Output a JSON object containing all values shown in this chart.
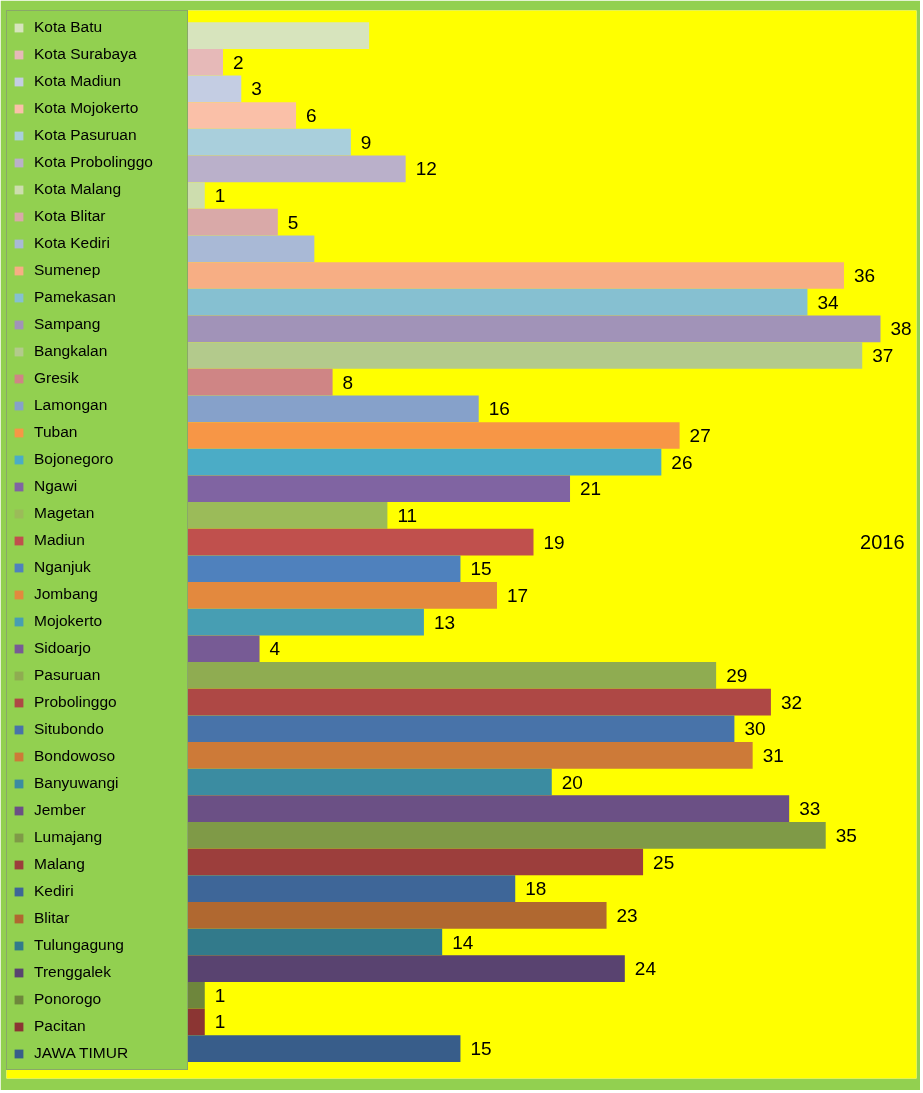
{
  "chart_data": {
    "type": "bar",
    "orientation": "horizontal",
    "annotations": [
      "2016"
    ],
    "legend": "left",
    "tick_labels": false,
    "categories": [
      null
    ],
    "series": [
      {
        "name": "Kota Batu",
        "color": "#d7e4bd",
        "values": [
          10
        ],
        "value_labels": [
          null
        ]
      },
      {
        "name": "Kota Surabaya",
        "color": "#e6b9b8",
        "values": [
          2
        ],
        "value_labels": [
          "2"
        ]
      },
      {
        "name": "Kota Madiun",
        "color": "#c4cde3",
        "values": [
          3
        ],
        "value_labels": [
          "3"
        ]
      },
      {
        "name": "Kota Mojokerto",
        "color": "#fac0a8",
        "values": [
          6
        ],
        "value_labels": [
          "6"
        ]
      },
      {
        "name": "Kota Pasuruan",
        "color": "#a9cfdc",
        "values": [
          9
        ],
        "value_labels": [
          "9"
        ]
      },
      {
        "name": "Kota Probolinggo",
        "color": "#bab0ca",
        "values": [
          12
        ],
        "value_labels": [
          "12"
        ]
      },
      {
        "name": "Kota Malang",
        "color": "#cdddae",
        "values": [
          1
        ],
        "value_labels": [
          "1"
        ]
      },
      {
        "name": "Kota Blitar",
        "color": "#d9a9a8",
        "values": [
          5
        ],
        "value_labels": [
          "5"
        ]
      },
      {
        "name": "Kota Kediri",
        "color": "#a9b9d6",
        "values": [
          7
        ],
        "value_labels": [
          null
        ]
      },
      {
        "name": "Sumenep",
        "color": "#f7ae84",
        "values": [
          36
        ],
        "value_labels": [
          "36"
        ]
      },
      {
        "name": "Pamekasan",
        "color": "#86c0d1",
        "values": [
          34
        ],
        "value_labels": [
          "34"
        ]
      },
      {
        "name": "Sampang",
        "color": "#a193b8",
        "values": [
          38
        ],
        "value_labels": [
          "38"
        ]
      },
      {
        "name": "Bangkalan",
        "color": "#b3ca8c",
        "values": [
          37
        ],
        "value_labels": [
          "37"
        ]
      },
      {
        "name": "Gresik",
        "color": "#cf8585",
        "values": [
          8
        ],
        "value_labels": [
          "8"
        ]
      },
      {
        "name": "Lamongan",
        "color": "#86a1ca",
        "values": [
          16
        ],
        "value_labels": [
          "16"
        ]
      },
      {
        "name": "Tuban",
        "color": "#f79646",
        "values": [
          27
        ],
        "value_labels": [
          "27"
        ]
      },
      {
        "name": "Bojonegoro",
        "color": "#4bacc6",
        "values": [
          26
        ],
        "value_labels": [
          "26"
        ]
      },
      {
        "name": "Ngawi",
        "color": "#8064a2",
        "values": [
          21
        ],
        "value_labels": [
          "21"
        ]
      },
      {
        "name": "Magetan",
        "color": "#9bbb59",
        "values": [
          11
        ],
        "value_labels": [
          "11"
        ]
      },
      {
        "name": "Madiun",
        "color": "#c0504d",
        "values": [
          19
        ],
        "value_labels": [
          "19"
        ]
      },
      {
        "name": "Nganjuk",
        "color": "#4f81bd",
        "values": [
          15
        ],
        "value_labels": [
          "15"
        ]
      },
      {
        "name": "Jombang",
        "color": "#e3893e",
        "values": [
          17
        ],
        "value_labels": [
          "17"
        ]
      },
      {
        "name": "Mojokerto",
        "color": "#479eb3",
        "values": [
          13
        ],
        "value_labels": [
          "13"
        ]
      },
      {
        "name": "Sidoarjo",
        "color": "#775b95",
        "values": [
          4
        ],
        "value_labels": [
          "4"
        ]
      },
      {
        "name": "Pasuruan",
        "color": "#8fac51",
        "values": [
          29
        ],
        "value_labels": [
          "29"
        ]
      },
      {
        "name": "Probolinggo",
        "color": "#ae4845",
        "values": [
          32
        ],
        "value_labels": [
          "32"
        ]
      },
      {
        "name": "Situbondo",
        "color": "#4873a9",
        "values": [
          30
        ],
        "value_labels": [
          "30"
        ]
      },
      {
        "name": "Bondowoso",
        "color": "#cd7a38",
        "values": [
          31
        ],
        "value_labels": [
          "31"
        ]
      },
      {
        "name": "Banyuwangi",
        "color": "#3b8ca1",
        "values": [
          20
        ],
        "value_labels": [
          "20"
        ]
      },
      {
        "name": "Jember",
        "color": "#6b5085",
        "values": [
          33
        ],
        "value_labels": [
          "33"
        ]
      },
      {
        "name": "Lumajang",
        "color": "#7f9a47",
        "values": [
          35
        ],
        "value_labels": [
          "35"
        ]
      },
      {
        "name": "Malang",
        "color": "#9c3e3c",
        "values": [
          25
        ],
        "value_labels": [
          "25"
        ]
      },
      {
        "name": "Kediri",
        "color": "#3e6698",
        "values": [
          18
        ],
        "value_labels": [
          "18"
        ]
      },
      {
        "name": "Blitar",
        "color": "#b06830",
        "values": [
          23
        ],
        "value_labels": [
          "23"
        ]
      },
      {
        "name": "Tulungagung",
        "color": "#327a8b",
        "values": [
          14
        ],
        "value_labels": [
          "14"
        ]
      },
      {
        "name": "Trenggalek",
        "color": "#594370",
        "values": [
          24
        ],
        "value_labels": [
          "24"
        ]
      },
      {
        "name": "Ponorogo",
        "color": "#6e863c",
        "values": [
          1
        ],
        "value_labels": [
          "1"
        ]
      },
      {
        "name": "Pacitan",
        "color": "#8b3533",
        "values": [
          1
        ],
        "value_labels": [
          "1"
        ]
      },
      {
        "name": "JAWA TIMUR",
        "color": "#385d8a",
        "values": [
          15
        ],
        "value_labels": [
          "15"
        ]
      }
    ]
  }
}
